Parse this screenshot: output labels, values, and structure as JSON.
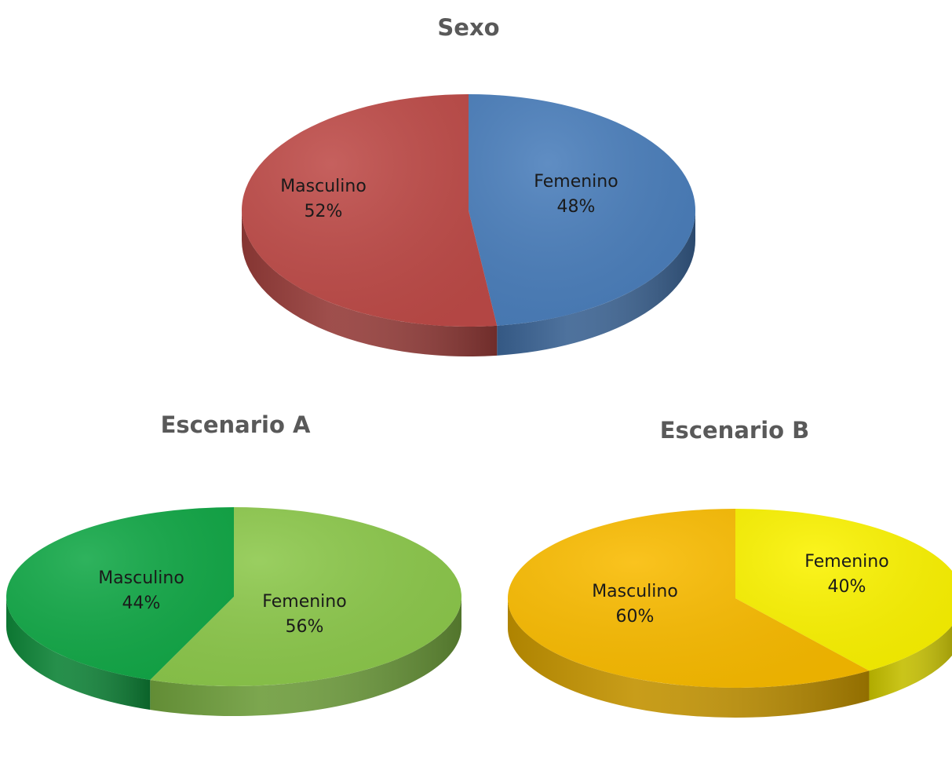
{
  "chart_data": [
    {
      "type": "pie",
      "title": "Sexo",
      "series": [
        {
          "name": "Femenino",
          "value": 48,
          "pct_label": "48%",
          "color": "#4a7ebb"
        },
        {
          "name": "Masculino",
          "value": 52,
          "pct_label": "52%",
          "color": "#be4b48"
        }
      ]
    },
    {
      "type": "pie",
      "title": "Escenario A",
      "series": [
        {
          "name": "Femenino",
          "value": 56,
          "pct_label": "56%",
          "color": "#8cc84b"
        },
        {
          "name": "Masculino",
          "value": 44,
          "pct_label": "44%",
          "color": "#12a847"
        }
      ]
    },
    {
      "type": "pie",
      "title": "Escenario B",
      "series": [
        {
          "name": "Femenino",
          "value": 40,
          "pct_label": "40%",
          "color": "#fbf300"
        },
        {
          "name": "Masculino",
          "value": 60,
          "pct_label": "60%",
          "color": "#f9bb00"
        }
      ]
    }
  ]
}
